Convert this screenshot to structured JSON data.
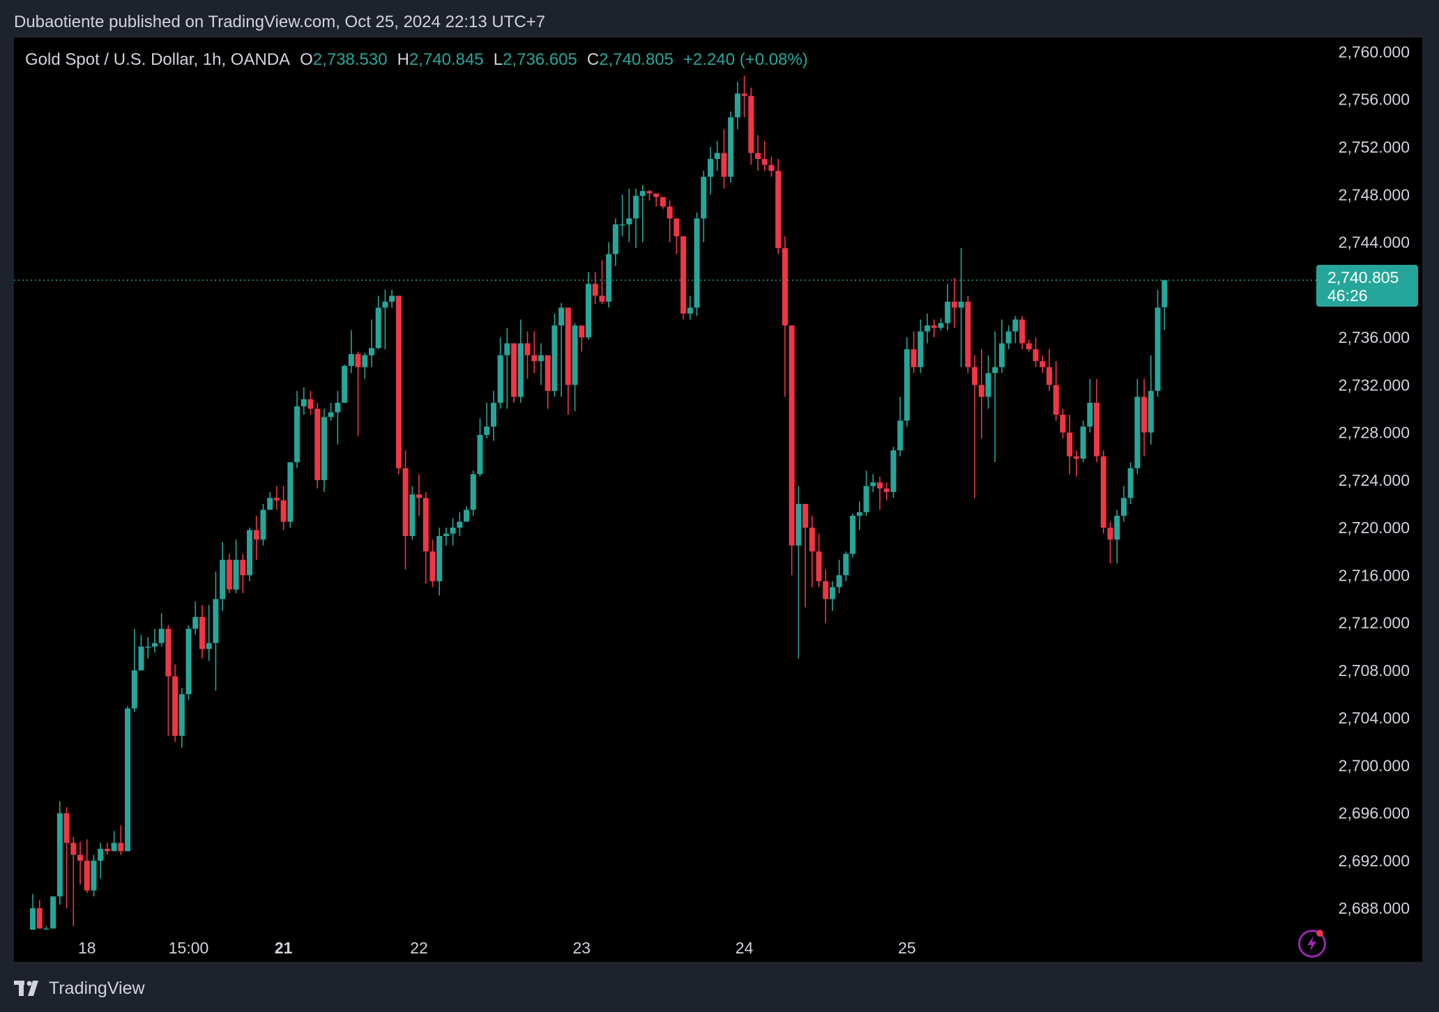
{
  "header": {
    "publish_line": "Dubaotiente published on TradingView.com, Oct 25, 2024 22:13 UTC+7"
  },
  "legend": {
    "symbol": "Gold Spot / U.S. Dollar, 1h, OANDA",
    "open_label": "O",
    "open": "2,738.530",
    "high_label": "H",
    "high": "2,740.845",
    "low_label": "L",
    "low": "2,736.605",
    "close_label": "C",
    "close": "2,740.805",
    "change": "+2.240 (+0.08%)"
  },
  "last_price": {
    "price": "2,740.805",
    "countdown": "46:26",
    "value": 2740.805
  },
  "colors": {
    "up": "#26a69a",
    "down": "#f23645",
    "background": "#000000",
    "frame": "#1e222d",
    "alert": "#9c27b0"
  },
  "footer": {
    "brand": "TradingView",
    "logo_icon": "tradingview-logo-icon"
  },
  "chart_data": {
    "type": "candlestick",
    "ylim": [
      2683.5,
      2761.2
    ],
    "y_ticks": [
      "2,760.000",
      "2,756.000",
      "2,752.000",
      "2,748.000",
      "2,744.000",
      "2,740.000",
      "2,736.000",
      "2,732.000",
      "2,728.000",
      "2,724.000",
      "2,720.000",
      "2,716.000",
      "2,712.000",
      "2,708.000",
      "2,704.000",
      "2,700.000",
      "2,696.000",
      "2,692.000",
      "2,688.000"
    ],
    "y_tick_values": [
      2760,
      2756,
      2752,
      2748,
      2744,
      2740,
      2736,
      2732,
      2728,
      2724,
      2720,
      2716,
      2712,
      2708,
      2704,
      2700,
      2696,
      2692,
      2688
    ],
    "x_ticks": [
      {
        "label": "18",
        "index": 8,
        "bold": false
      },
      {
        "label": "15:00",
        "index": 23,
        "bold": false
      },
      {
        "label": "21",
        "index": 37,
        "bold": true
      },
      {
        "label": "22",
        "index": 57,
        "bold": false
      },
      {
        "label": "23",
        "index": 81,
        "bold": false
      },
      {
        "label": "24",
        "index": 105,
        "bold": false
      },
      {
        "label": "25",
        "index": 129,
        "bold": false
      }
    ],
    "candles": [
      [
        2686.2,
        2688.0,
        2689.2,
        2686.2
      ],
      [
        2688.0,
        2686.3,
        2688.7,
        2686.3
      ],
      [
        2686.3,
        2686.3,
        2686.5,
        2686.3
      ],
      [
        2686.3,
        2689.0,
        2689.0,
        2686.3
      ],
      [
        2689.0,
        2696.0,
        2697.0,
        2688.3
      ],
      [
        2696.0,
        2693.5,
        2696.5,
        2688.0
      ],
      [
        2693.5,
        2692.5,
        2694.0,
        2686.5
      ],
      [
        2692.5,
        2692.0,
        2693.6,
        2690.0
      ],
      [
        2692.0,
        2689.5,
        2693.8,
        2689.3
      ],
      [
        2689.5,
        2692.0,
        2692.5,
        2689.0
      ],
      [
        2692.0,
        2693.0,
        2693.5,
        2690.5
      ],
      [
        2693.0,
        2692.8,
        2693.5,
        2692.5
      ],
      [
        2692.8,
        2693.5,
        2694.5,
        2692.8
      ],
      [
        2693.5,
        2692.8,
        2695.0,
        2692.5
      ],
      [
        2692.8,
        2704.8,
        2705.0,
        2693.0
      ],
      [
        2704.8,
        2708.0,
        2711.5,
        2704.5
      ],
      [
        2708.0,
        2710.0,
        2711.0,
        2708.0
      ],
      [
        2710.0,
        2710.0,
        2710.8,
        2709.0
      ],
      [
        2710.0,
        2710.3,
        2711.5,
        2709.5
      ],
      [
        2710.3,
        2711.5,
        2712.8,
        2710.0
      ],
      [
        2711.5,
        2707.5,
        2711.8,
        2702.5
      ],
      [
        2707.5,
        2702.5,
        2708.5,
        2702.0
      ],
      [
        2702.5,
        2706.0,
        2706.5,
        2701.5
      ],
      [
        2706.0,
        2711.5,
        2711.8,
        2705.5
      ],
      [
        2711.5,
        2712.5,
        2713.8,
        2711.0
      ],
      [
        2712.5,
        2709.8,
        2713.5,
        2709.0
      ],
      [
        2709.8,
        2710.3,
        2713.5,
        2708.8
      ],
      [
        2710.3,
        2714.0,
        2716.3,
        2706.3
      ],
      [
        2714.0,
        2717.3,
        2718.8,
        2713.0
      ],
      [
        2717.3,
        2714.8,
        2717.8,
        2714.5
      ],
      [
        2714.8,
        2717.3,
        2719.0,
        2714.5
      ],
      [
        2717.3,
        2716.0,
        2717.8,
        2714.5
      ],
      [
        2716.0,
        2719.8,
        2720.0,
        2715.5
      ],
      [
        2719.8,
        2719.0,
        2721.0,
        2717.3
      ],
      [
        2719.0,
        2721.5,
        2722.0,
        2718.5
      ],
      [
        2721.5,
        2722.5,
        2723.0,
        2722.0
      ],
      [
        2722.5,
        2722.3,
        2723.5,
        2721.5
      ],
      [
        2722.3,
        2720.5,
        2723.5,
        2719.8
      ],
      [
        2720.5,
        2725.5,
        2725.5,
        2720.0
      ],
      [
        2725.5,
        2730.2,
        2731.5,
        2725.0
      ],
      [
        2730.2,
        2730.8,
        2731.8,
        2729.5
      ],
      [
        2730.8,
        2730.0,
        2731.5,
        2729.5
      ],
      [
        2730.0,
        2724.0,
        2730.5,
        2723.3
      ],
      [
        2724.0,
        2729.3,
        2730.0,
        2723.0
      ],
      [
        2729.3,
        2729.7,
        2730.5,
        2729.0
      ],
      [
        2729.7,
        2730.5,
        2731.5,
        2727.0
      ],
      [
        2730.5,
        2733.6,
        2733.7,
        2730.5
      ],
      [
        2733.6,
        2734.6,
        2736.6,
        2733.0
      ],
      [
        2734.6,
        2733.5,
        2734.8,
        2727.7
      ],
      [
        2733.5,
        2734.5,
        2734.7,
        2732.5
      ],
      [
        2734.5,
        2735.1,
        2737.5,
        2733.5
      ],
      [
        2735.1,
        2738.5,
        2739.5,
        2735.0
      ],
      [
        2738.5,
        2739.0,
        2740.0,
        2735.0
      ],
      [
        2739.0,
        2739.5,
        2740.0,
        2738.5
      ],
      [
        2739.5,
        2725.0,
        2739.5,
        2724.5
      ],
      [
        2725.0,
        2719.3,
        2726.5,
        2716.5
      ],
      [
        2719.3,
        2722.8,
        2723.5,
        2719.0
      ],
      [
        2722.8,
        2722.5,
        2724.5,
        2721.0
      ],
      [
        2722.5,
        2718.0,
        2723.0,
        2715.3
      ],
      [
        2718.0,
        2715.5,
        2719.0,
        2715.0
      ],
      [
        2715.5,
        2719.3,
        2720.0,
        2714.3
      ],
      [
        2719.3,
        2719.5,
        2720.0,
        2718.5
      ],
      [
        2719.5,
        2720.0,
        2720.8,
        2718.5
      ],
      [
        2720.0,
        2720.5,
        2721.3,
        2719.3
      ],
      [
        2720.5,
        2721.5,
        2721.8,
        2720.5
      ],
      [
        2721.5,
        2724.5,
        2724.8,
        2721.0
      ],
      [
        2724.5,
        2727.8,
        2729.2,
        2724.3
      ],
      [
        2727.8,
        2728.5,
        2730.5,
        2727.5
      ],
      [
        2728.5,
        2730.5,
        2731.5,
        2727.3
      ],
      [
        2730.5,
        2734.5,
        2736.0,
        2730.0
      ],
      [
        2734.5,
        2735.5,
        2736.8,
        2730.0
      ],
      [
        2735.5,
        2731.0,
        2735.5,
        2730.5
      ],
      [
        2731.0,
        2735.5,
        2737.5,
        2730.5
      ],
      [
        2735.5,
        2734.5,
        2736.5,
        2732.5
      ],
      [
        2734.5,
        2734.0,
        2736.5,
        2733.0
      ],
      [
        2734.0,
        2734.5,
        2735.5,
        2732.0
      ],
      [
        2734.5,
        2731.5,
        2734.5,
        2730.0
      ],
      [
        2731.5,
        2737.0,
        2738.0,
        2731.0
      ],
      [
        2737.0,
        2738.5,
        2738.9,
        2731.0
      ],
      [
        2738.5,
        2732.0,
        2738.5,
        2729.5
      ],
      [
        2732.0,
        2737.0,
        2737.2,
        2729.8
      ],
      [
        2737.0,
        2736.0,
        2736.8,
        2734.8
      ],
      [
        2736.0,
        2740.5,
        2741.5,
        2735.8
      ],
      [
        2740.5,
        2739.5,
        2741.5,
        2738.8
      ],
      [
        2739.5,
        2739.0,
        2742.5,
        2738.8
      ],
      [
        2739.0,
        2743.0,
        2744.0,
        2738.5
      ],
      [
        2743.0,
        2745.5,
        2746.0,
        2742.0
      ],
      [
        2745.5,
        2745.5,
        2748.0,
        2744.5
      ],
      [
        2745.5,
        2746.0,
        2748.5,
        2744.0
      ],
      [
        2746.0,
        2747.9,
        2748.5,
        2743.5
      ],
      [
        2747.9,
        2748.3,
        2748.8,
        2744.0
      ],
      [
        2748.3,
        2748.1,
        2748.4,
        2747.5
      ],
      [
        2748.1,
        2747.8,
        2747.9,
        2747.0
      ],
      [
        2747.8,
        2747.0,
        2747.3,
        2746.8
      ],
      [
        2747.0,
        2746.0,
        2747.5,
        2744.0
      ],
      [
        2746.0,
        2744.5,
        2746.0,
        2743.0
      ],
      [
        2744.5,
        2738.0,
        2744.5,
        2737.5
      ],
      [
        2738.0,
        2738.5,
        2739.5,
        2737.5
      ],
      [
        2738.5,
        2746.0,
        2746.5,
        2737.8
      ],
      [
        2746.0,
        2749.5,
        2750.0,
        2744.0
      ],
      [
        2749.5,
        2751.0,
        2752.0,
        2748.0
      ],
      [
        2751.0,
        2751.5,
        2752.5,
        2750.0
      ],
      [
        2751.5,
        2749.5,
        2753.5,
        2748.5
      ],
      [
        2749.5,
        2754.5,
        2755.0,
        2749.0
      ],
      [
        2754.5,
        2756.5,
        2757.5,
        2753.5
      ],
      [
        2756.5,
        2756.3,
        2758.0,
        2754.5
      ],
      [
        2756.3,
        2751.5,
        2757.0,
        2750.5
      ],
      [
        2751.5,
        2751.0,
        2753.0,
        2750.0
      ],
      [
        2751.0,
        2750.5,
        2752.5,
        2750.0
      ],
      [
        2750.5,
        2750.0,
        2751.2,
        2749.5
      ],
      [
        2750.0,
        2743.5,
        2751.0,
        2743.0
      ],
      [
        2743.5,
        2737.0,
        2744.5,
        2731.0
      ],
      [
        2737.0,
        2718.5,
        2737.0,
        2716.0
      ],
      [
        2718.5,
        2722.0,
        2723.5,
        2709.0
      ],
      [
        2722.0,
        2720.0,
        2721.5,
        2713.3
      ],
      [
        2720.0,
        2718.0,
        2721.0,
        2715.0
      ],
      [
        2718.0,
        2715.5,
        2719.5,
        2715.0
      ],
      [
        2715.5,
        2714.0,
        2716.5,
        2712.0
      ],
      [
        2714.0,
        2715.0,
        2715.5,
        2713.0
      ],
      [
        2715.0,
        2716.0,
        2717.3,
        2714.5
      ],
      [
        2716.0,
        2717.8,
        2718.0,
        2715.5
      ],
      [
        2717.8,
        2721.0,
        2721.2,
        2717.5
      ],
      [
        2721.0,
        2721.3,
        2722.2,
        2719.8
      ],
      [
        2721.3,
        2723.5,
        2724.8,
        2721.0
      ],
      [
        2723.5,
        2723.8,
        2724.5,
        2723.0
      ],
      [
        2723.8,
        2723.3,
        2724.3,
        2721.5
      ],
      [
        2723.3,
        2723.0,
        2723.8,
        2722.3
      ],
      [
        2723.0,
        2726.5,
        2726.8,
        2722.5
      ],
      [
        2726.5,
        2729.0,
        2731.0,
        2726.0
      ],
      [
        2729.0,
        2735.0,
        2736.0,
        2728.5
      ],
      [
        2735.0,
        2733.5,
        2736.5,
        2733.0
      ],
      [
        2733.5,
        2736.5,
        2737.5,
        2733.0
      ],
      [
        2736.5,
        2737.0,
        2738.0,
        2735.5
      ],
      [
        2737.0,
        2736.8,
        2737.5,
        2736.0
      ],
      [
        2736.8,
        2737.2,
        2737.6,
        2736.6
      ],
      [
        2737.2,
        2739.0,
        2740.5,
        2736.6
      ],
      [
        2739.0,
        2738.5,
        2741.0,
        2736.8
      ],
      [
        2738.5,
        2739.0,
        2743.5,
        2733.5
      ],
      [
        2739.0,
        2733.5,
        2739.5,
        2733.0
      ],
      [
        2733.5,
        2732.0,
        2734.5,
        2722.5
      ],
      [
        2732.0,
        2731.0,
        2735.0,
        2727.5
      ],
      [
        2731.0,
        2733.0,
        2734.5,
        2730.0
      ],
      [
        2733.0,
        2733.5,
        2736.5,
        2725.5
      ],
      [
        2733.5,
        2735.5,
        2737.5,
        2733.0
      ],
      [
        2735.5,
        2736.5,
        2737.0,
        2735.0
      ],
      [
        2736.5,
        2737.5,
        2737.8,
        2735.5
      ],
      [
        2737.5,
        2735.5,
        2737.8,
        2735.0
      ],
      [
        2735.5,
        2735.0,
        2735.8,
        2734.8
      ],
      [
        2735.0,
        2734.0,
        2736.0,
        2733.5
      ],
      [
        2734.0,
        2733.5,
        2734.5,
        2733.0
      ],
      [
        2733.5,
        2732.0,
        2735.0,
        2731.5
      ],
      [
        2732.0,
        2729.5,
        2734.0,
        2729.0
      ],
      [
        2729.5,
        2728.0,
        2730.0,
        2727.5
      ],
      [
        2728.0,
        2726.0,
        2729.5,
        2724.5
      ],
      [
        2726.0,
        2725.8,
        2726.5,
        2724.3
      ],
      [
        2725.8,
        2728.5,
        2729.0,
        2725.5
      ],
      [
        2728.5,
        2730.5,
        2732.5,
        2728.0
      ],
      [
        2730.5,
        2726.0,
        2732.5,
        2725.5
      ],
      [
        2726.0,
        2720.0,
        2726.5,
        2719.5
      ],
      [
        2720.0,
        2719.0,
        2720.5,
        2717.0
      ],
      [
        2719.0,
        2721.0,
        2721.5,
        2717.0
      ],
      [
        2721.0,
        2722.5,
        2723.5,
        2720.5
      ],
      [
        2722.5,
        2725.0,
        2725.5,
        2722.0
      ],
      [
        2725.0,
        2731.0,
        2732.5,
        2724.5
      ],
      [
        2731.0,
        2728.0,
        2732.5,
        2726.0
      ],
      [
        2728.0,
        2731.5,
        2734.5,
        2727.0
      ],
      [
        2731.5,
        2738.5,
        2740.0,
        2731.0
      ],
      [
        2738.53,
        2740.805,
        2740.845,
        2736.605
      ]
    ]
  }
}
